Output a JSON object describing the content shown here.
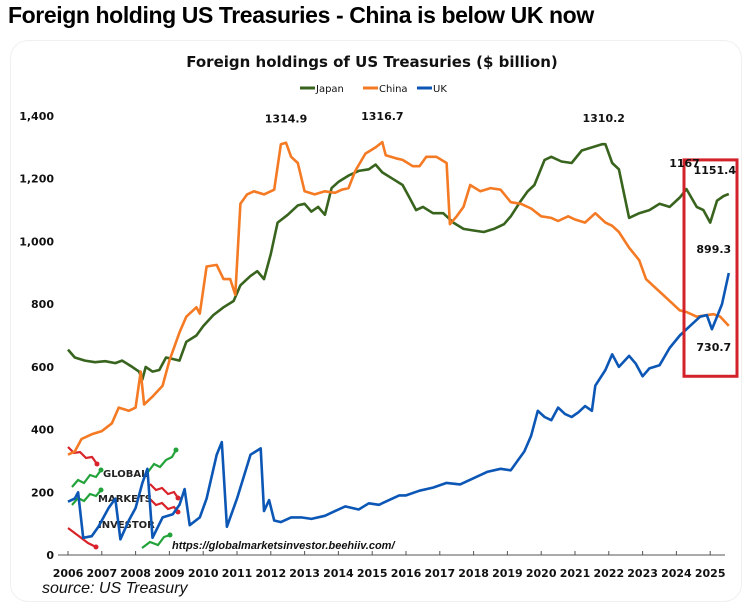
{
  "headline": "Foreign holding US Treasuries - China is below UK now",
  "source": "source: US Treasury",
  "watermark": {
    "logo_words": [
      "GLOBAL",
      "MARKETS",
      "INVESTOR"
    ],
    "url": "https://globalmarketsinvestor.beehiiv.com/"
  },
  "colors": {
    "japan": "#38641e",
    "china": "#f47a24",
    "uk": "#0c57b5",
    "highlight_box": "#d3222a",
    "logo_red": "#d9232a",
    "logo_green": "#22a33a"
  },
  "chart_data": {
    "type": "line",
    "title": "Foreign holdings of US Treasuries ($ billion)",
    "xlabel": "",
    "ylabel": "",
    "xlim": [
      2006,
      2025.5
    ],
    "ylim": [
      0,
      1400
    ],
    "grid": false,
    "legend_position": "top-center",
    "x_ticks": [
      "2006",
      "2007",
      "2008",
      "2009",
      "2010",
      "2011",
      "2012",
      "2013",
      "2014",
      "2015",
      "2016",
      "2017",
      "2018",
      "2019",
      "2020",
      "2021",
      "2022",
      "2023",
      "2024",
      "2025"
    ],
    "y_ticks": [
      "0",
      "200",
      "400",
      "600",
      "800",
      "1,000",
      "1,200",
      "1,400"
    ],
    "y_tick_values": [
      0,
      200,
      400,
      600,
      800,
      1000,
      1200,
      1400
    ],
    "series": [
      {
        "name": "Japan",
        "color_key": "japan",
        "points": [
          [
            2006.0,
            655
          ],
          [
            2006.2,
            630
          ],
          [
            2006.5,
            620
          ],
          [
            2006.8,
            615
          ],
          [
            2007.1,
            618
          ],
          [
            2007.4,
            612
          ],
          [
            2007.6,
            620
          ],
          [
            2007.9,
            600
          ],
          [
            2008.1,
            585
          ],
          [
            2008.2,
            560
          ],
          [
            2008.3,
            600
          ],
          [
            2008.5,
            585
          ],
          [
            2008.7,
            590
          ],
          [
            2008.9,
            630
          ],
          [
            2009.1,
            625
          ],
          [
            2009.3,
            620
          ],
          [
            2009.5,
            680
          ],
          [
            2009.8,
            700
          ],
          [
            2010.0,
            730
          ],
          [
            2010.3,
            765
          ],
          [
            2010.6,
            790
          ],
          [
            2010.9,
            810
          ],
          [
            2011.1,
            860
          ],
          [
            2011.4,
            890
          ],
          [
            2011.6,
            905
          ],
          [
            2011.8,
            880
          ],
          [
            2012.0,
            960
          ],
          [
            2012.2,
            1060
          ],
          [
            2012.5,
            1085
          ],
          [
            2012.8,
            1115
          ],
          [
            2013.0,
            1120
          ],
          [
            2013.2,
            1095
          ],
          [
            2013.4,
            1110
          ],
          [
            2013.6,
            1085
          ],
          [
            2013.8,
            1170
          ],
          [
            2014.0,
            1190
          ],
          [
            2014.3,
            1210
          ],
          [
            2014.6,
            1225
          ],
          [
            2014.9,
            1230
          ],
          [
            2015.1,
            1245
          ],
          [
            2015.3,
            1220
          ],
          [
            2015.6,
            1200
          ],
          [
            2015.9,
            1180
          ],
          [
            2016.1,
            1140
          ],
          [
            2016.3,
            1100
          ],
          [
            2016.5,
            1110
          ],
          [
            2016.8,
            1090
          ],
          [
            2017.1,
            1090
          ],
          [
            2017.4,
            1060
          ],
          [
            2017.7,
            1040
          ],
          [
            2018.0,
            1035
          ],
          [
            2018.3,
            1030
          ],
          [
            2018.6,
            1040
          ],
          [
            2018.9,
            1055
          ],
          [
            2019.1,
            1080
          ],
          [
            2019.4,
            1130
          ],
          [
            2019.6,
            1160
          ],
          [
            2019.8,
            1180
          ],
          [
            2020.1,
            1260
          ],
          [
            2020.3,
            1270
          ],
          [
            2020.6,
            1255
          ],
          [
            2020.9,
            1250
          ],
          [
            2021.2,
            1290
          ],
          [
            2021.5,
            1300
          ],
          [
            2021.8,
            1310
          ],
          [
            2021.9,
            1310
          ],
          [
            2022.1,
            1250
          ],
          [
            2022.3,
            1230
          ],
          [
            2022.6,
            1075
          ],
          [
            2022.9,
            1090
          ],
          [
            2023.2,
            1100
          ],
          [
            2023.5,
            1120
          ],
          [
            2023.8,
            1110
          ],
          [
            2024.1,
            1140
          ],
          [
            2024.3,
            1167
          ],
          [
            2024.6,
            1110
          ],
          [
            2024.8,
            1100
          ],
          [
            2025.0,
            1060
          ],
          [
            2025.2,
            1130
          ],
          [
            2025.4,
            1145
          ],
          [
            2025.55,
            1151.4
          ]
        ]
      },
      {
        "name": "China",
        "color_key": "china",
        "points": [
          [
            2006.0,
            320
          ],
          [
            2006.2,
            330
          ],
          [
            2006.4,
            370
          ],
          [
            2006.7,
            385
          ],
          [
            2007.0,
            395
          ],
          [
            2007.3,
            420
          ],
          [
            2007.5,
            470
          ],
          [
            2007.8,
            460
          ],
          [
            2008.0,
            470
          ],
          [
            2008.15,
            585
          ],
          [
            2008.25,
            480
          ],
          [
            2008.5,
            505
          ],
          [
            2008.8,
            540
          ],
          [
            2009.0,
            620
          ],
          [
            2009.3,
            710
          ],
          [
            2009.5,
            760
          ],
          [
            2009.8,
            790
          ],
          [
            2009.9,
            770
          ],
          [
            2010.1,
            920
          ],
          [
            2010.4,
            925
          ],
          [
            2010.6,
            880
          ],
          [
            2010.8,
            880
          ],
          [
            2010.95,
            830
          ],
          [
            2011.1,
            1120
          ],
          [
            2011.3,
            1150
          ],
          [
            2011.5,
            1160
          ],
          [
            2011.8,
            1150
          ],
          [
            2012.1,
            1165
          ],
          [
            2012.3,
            1310
          ],
          [
            2012.45,
            1314.9
          ],
          [
            2012.6,
            1270
          ],
          [
            2012.8,
            1250
          ],
          [
            2013.0,
            1160
          ],
          [
            2013.3,
            1150
          ],
          [
            2013.6,
            1160
          ],
          [
            2013.9,
            1155
          ],
          [
            2014.1,
            1165
          ],
          [
            2014.3,
            1170
          ],
          [
            2014.5,
            1225
          ],
          [
            2014.8,
            1280
          ],
          [
            2015.1,
            1300
          ],
          [
            2015.3,
            1316.7
          ],
          [
            2015.4,
            1275
          ],
          [
            2015.7,
            1265
          ],
          [
            2015.9,
            1260
          ],
          [
            2016.2,
            1240
          ],
          [
            2016.4,
            1240
          ],
          [
            2016.6,
            1270
          ],
          [
            2016.9,
            1270
          ],
          [
            2017.2,
            1250
          ],
          [
            2017.3,
            1055
          ],
          [
            2017.5,
            1080
          ],
          [
            2017.7,
            1110
          ],
          [
            2017.9,
            1180
          ],
          [
            2018.2,
            1160
          ],
          [
            2018.5,
            1170
          ],
          [
            2018.8,
            1165
          ],
          [
            2019.1,
            1125
          ],
          [
            2019.4,
            1120
          ],
          [
            2019.7,
            1105
          ],
          [
            2020.0,
            1080
          ],
          [
            2020.3,
            1075
          ],
          [
            2020.5,
            1065
          ],
          [
            2020.8,
            1080
          ],
          [
            2021.0,
            1070
          ],
          [
            2021.3,
            1060
          ],
          [
            2021.6,
            1090
          ],
          [
            2021.9,
            1060
          ],
          [
            2022.1,
            1050
          ],
          [
            2022.3,
            1030
          ],
          [
            2022.6,
            980
          ],
          [
            2022.9,
            940
          ],
          [
            2023.1,
            880
          ],
          [
            2023.3,
            860
          ],
          [
            2023.6,
            830
          ],
          [
            2023.9,
            800
          ],
          [
            2024.1,
            780
          ],
          [
            2024.3,
            775
          ],
          [
            2024.6,
            760
          ],
          [
            2024.9,
            765
          ],
          [
            2025.1,
            768
          ],
          [
            2025.3,
            760
          ],
          [
            2025.55,
            730.7
          ]
        ]
      },
      {
        "name": "UK",
        "color_key": "uk",
        "points": [
          [
            2006.0,
            170
          ],
          [
            2006.2,
            180
          ],
          [
            2006.3,
            200
          ],
          [
            2006.45,
            55
          ],
          [
            2006.7,
            60
          ],
          [
            2006.9,
            90
          ],
          [
            2007.2,
            150
          ],
          [
            2007.4,
            180
          ],
          [
            2007.55,
            50
          ],
          [
            2007.8,
            110
          ],
          [
            2008.0,
            150
          ],
          [
            2008.2,
            230
          ],
          [
            2008.35,
            275
          ],
          [
            2008.5,
            55
          ],
          [
            2008.8,
            120
          ],
          [
            2009.1,
            130
          ],
          [
            2009.3,
            160
          ],
          [
            2009.45,
            210
          ],
          [
            2009.6,
            95
          ],
          [
            2009.9,
            120
          ],
          [
            2010.1,
            180
          ],
          [
            2010.4,
            320
          ],
          [
            2010.55,
            360
          ],
          [
            2010.7,
            90
          ],
          [
            2011.0,
            180
          ],
          [
            2011.4,
            320
          ],
          [
            2011.7,
            340
          ],
          [
            2011.8,
            140
          ],
          [
            2011.95,
            175
          ],
          [
            2012.1,
            110
          ],
          [
            2012.3,
            105
          ],
          [
            2012.6,
            120
          ],
          [
            2012.9,
            120
          ],
          [
            2013.2,
            115
          ],
          [
            2013.6,
            125
          ],
          [
            2013.9,
            140
          ],
          [
            2014.2,
            155
          ],
          [
            2014.6,
            145
          ],
          [
            2014.9,
            165
          ],
          [
            2015.2,
            160
          ],
          [
            2015.5,
            175
          ],
          [
            2015.8,
            190
          ],
          [
            2016.0,
            190
          ],
          [
            2016.4,
            205
          ],
          [
            2016.8,
            215
          ],
          [
            2017.2,
            230
          ],
          [
            2017.6,
            225
          ],
          [
            2018.0,
            245
          ],
          [
            2018.4,
            265
          ],
          [
            2018.8,
            275
          ],
          [
            2019.1,
            270
          ],
          [
            2019.3,
            300
          ],
          [
            2019.5,
            330
          ],
          [
            2019.7,
            380
          ],
          [
            2019.9,
            460
          ],
          [
            2020.1,
            440
          ],
          [
            2020.3,
            430
          ],
          [
            2020.5,
            470
          ],
          [
            2020.7,
            450
          ],
          [
            2020.9,
            440
          ],
          [
            2021.1,
            455
          ],
          [
            2021.3,
            475
          ],
          [
            2021.5,
            460
          ],
          [
            2021.6,
            540
          ],
          [
            2021.9,
            590
          ],
          [
            2022.1,
            640
          ],
          [
            2022.3,
            600
          ],
          [
            2022.6,
            635
          ],
          [
            2022.8,
            610
          ],
          [
            2023.0,
            570
          ],
          [
            2023.2,
            595
          ],
          [
            2023.5,
            605
          ],
          [
            2023.8,
            660
          ],
          [
            2024.1,
            700
          ],
          [
            2024.4,
            730
          ],
          [
            2024.7,
            760
          ],
          [
            2024.9,
            765
          ],
          [
            2025.05,
            720
          ],
          [
            2025.2,
            760
          ],
          [
            2025.35,
            800
          ],
          [
            2025.55,
            899.3
          ]
        ]
      }
    ],
    "annotations": [
      {
        "text": "1314.9",
        "series": "China",
        "x": 2012.45,
        "y": 1314.9
      },
      {
        "text": "1316.7",
        "series": "China",
        "x": 2015.3,
        "y": 1316.7
      },
      {
        "text": "1310.2",
        "series": "Japan",
        "x": 2021.85,
        "y": 1310.2
      },
      {
        "text": "1167",
        "series": "Japan",
        "x": 2024.3,
        "y": 1167
      },
      {
        "text": "1151.4",
        "series": "Japan",
        "x": 2025.55,
        "y": 1151.4
      },
      {
        "text": "899.3",
        "series": "UK",
        "x": 2025.55,
        "y": 899.3
      },
      {
        "text": "730.7",
        "series": "China",
        "x": 2025.55,
        "y": 730.7
      }
    ],
    "highlight_range": {
      "x": [
        2024.9,
        2025.9
      ],
      "y": [
        570,
        1260
      ]
    }
  }
}
